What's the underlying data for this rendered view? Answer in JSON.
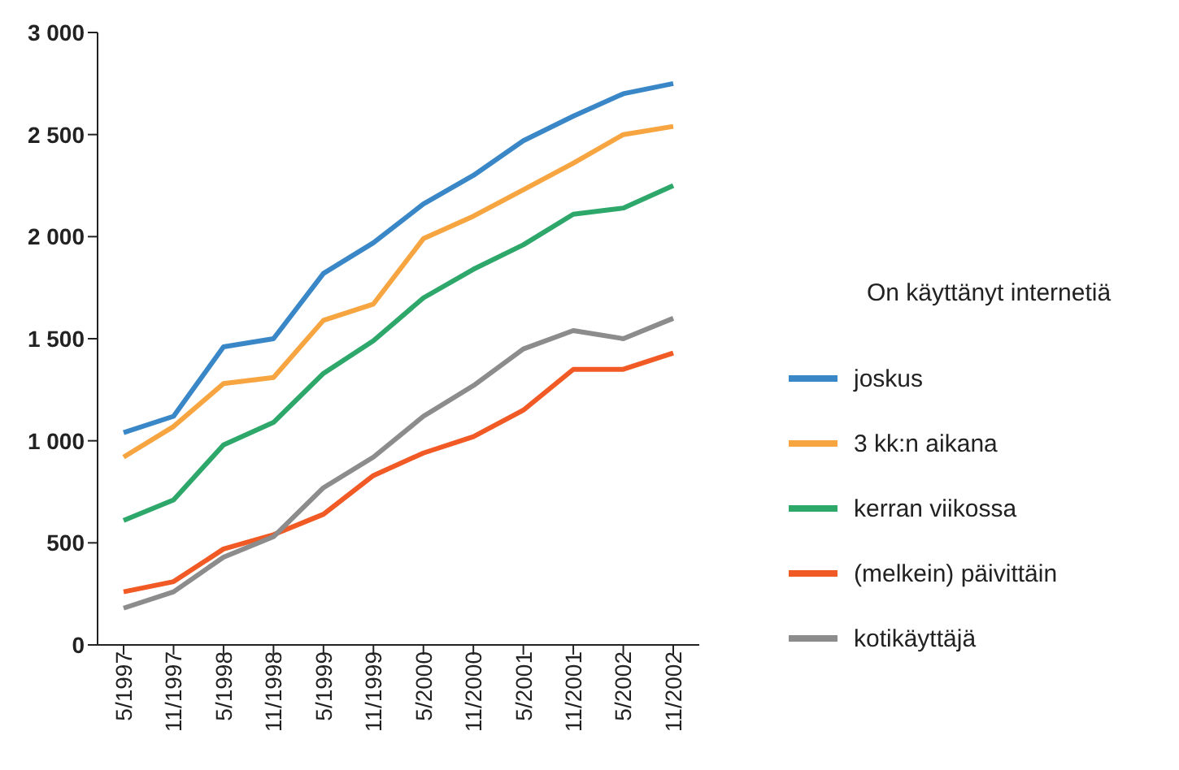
{
  "chart_data": {
    "type": "line",
    "legend_title": "On käyttänyt internetiä",
    "categories": [
      "5/1997",
      "11/1997",
      "5/1998",
      "11/1998",
      "5/1999",
      "11/1999",
      "5/2000",
      "11/2000",
      "5/2001",
      "11/2001",
      "5/2002",
      "11/2002"
    ],
    "series": [
      {
        "name": "joskus",
        "color": "#3a87c8",
        "values": [
          1040,
          1120,
          1460,
          1500,
          1820,
          1970,
          2160,
          2300,
          2470,
          2590,
          2700,
          2750
        ]
      },
      {
        "name": "3 kk:n aikana",
        "color": "#f7a541",
        "values": [
          920,
          1070,
          1280,
          1310,
          1590,
          1670,
          1990,
          2100,
          2230,
          2360,
          2500,
          2540
        ]
      },
      {
        "name": "kerran viikossa",
        "color": "#2ea86a",
        "values": [
          610,
          710,
          980,
          1090,
          1330,
          1490,
          1700,
          1840,
          1960,
          2110,
          2140,
          2250
        ]
      },
      {
        "name": "(melkein) päivittäin",
        "color": "#f15a24",
        "values": [
          260,
          310,
          470,
          540,
          640,
          830,
          940,
          1020,
          1150,
          1350,
          1350,
          1430
        ]
      },
      {
        "name": "kotikäyttäjä",
        "color": "#8c8c8c",
        "values": [
          180,
          260,
          430,
          530,
          770,
          920,
          1120,
          1270,
          1450,
          1540,
          1500,
          1600
        ]
      }
    ],
    "ylim": [
      0,
      3000
    ],
    "yticks": [
      {
        "value": 0,
        "label": "0"
      },
      {
        "value": 500,
        "label": "500"
      },
      {
        "value": 1000,
        "label": "1 000"
      },
      {
        "value": 1500,
        "label": "1 500"
      },
      {
        "value": 2000,
        "label": "2 000"
      },
      {
        "value": 2500,
        "label": "2 500"
      },
      {
        "value": 3000,
        "label": "3 000"
      }
    ],
    "grid": false,
    "legend": "right",
    "marker": "none",
    "line_style": "solid"
  }
}
